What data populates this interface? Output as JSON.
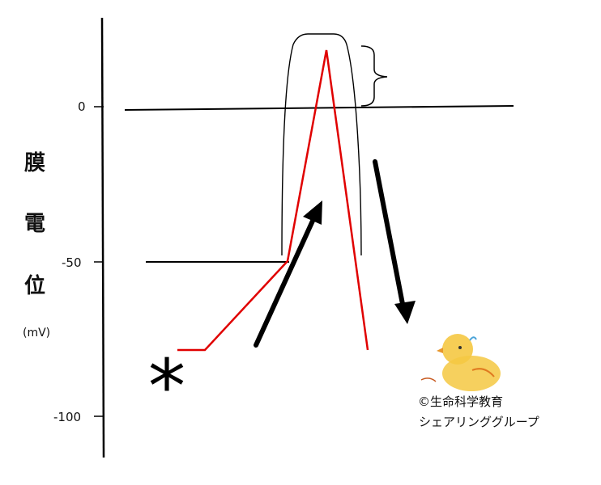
{
  "axis": {
    "ticks": [
      {
        "value": 0,
        "label": "0"
      },
      {
        "value": -50,
        "label": "-50"
      },
      {
        "value": -100,
        "label": "-100"
      }
    ],
    "label_chars": [
      "膜",
      "電",
      "位"
    ],
    "unit": "(mV)"
  },
  "levels": {
    "zero_mV": 0,
    "threshold_mV": -50,
    "resting_mV": -78,
    "peak_mV": 18
  },
  "marker": "*",
  "credit": {
    "line1": "©生命科学教育",
    "line2": "シェアリンググループ"
  },
  "colors": {
    "action_potential": "#e00000",
    "axis": "#000000",
    "arrow": "#000000",
    "chick_body": "#f5c842"
  }
}
